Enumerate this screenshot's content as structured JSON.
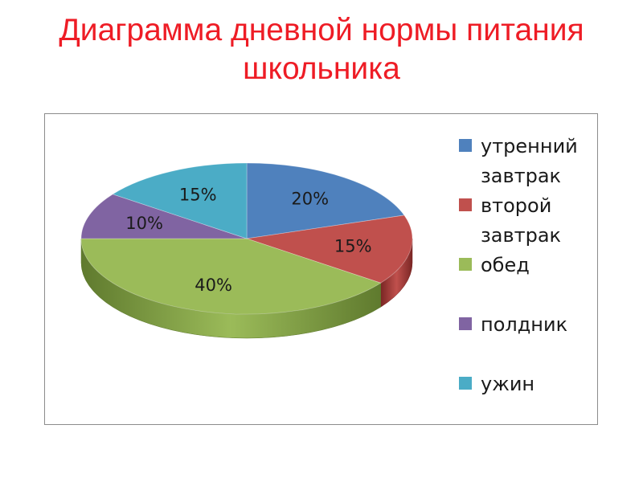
{
  "title": {
    "line1": "Диаграмма дневной нормы питания",
    "line2": "школьника",
    "color": "#ee1c25"
  },
  "chart_data": {
    "type": "pie",
    "style": "3d",
    "title": "Диаграмма дневной нормы питания школьника",
    "legend_position": "right",
    "categories": [
      "утренний завтрак",
      "второй завтрак",
      "обед",
      "полдник",
      "ужин"
    ],
    "values": [
      20,
      15,
      40,
      10,
      15
    ],
    "labels": [
      "20%",
      "15%",
      "40%",
      "10%",
      "15%"
    ],
    "legend_lines": [
      [
        "утренний",
        "завтрак"
      ],
      [
        "второй",
        "завтрак"
      ],
      [
        "обед"
      ],
      [
        "полдник"
      ],
      [
        "ужин"
      ]
    ],
    "colors": [
      "#4f81bd",
      "#c0504d",
      "#9bbb59",
      "#8064a2",
      "#4bacc6"
    ],
    "side_colors": [
      "#2c4d75",
      "#7a2624",
      "#5f7a2e",
      "#4d3a66",
      "#2a7489"
    ]
  }
}
